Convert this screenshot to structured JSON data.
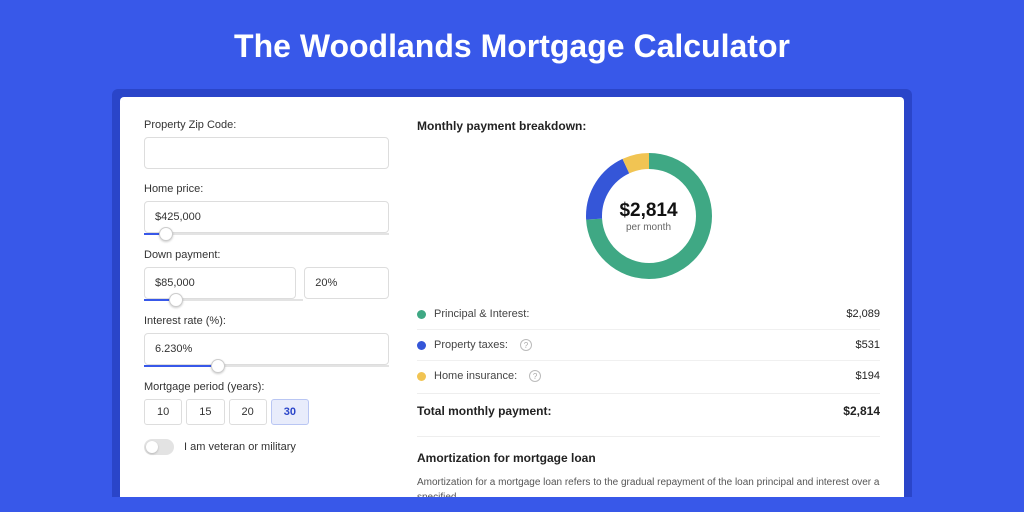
{
  "page": {
    "title": "The Woodlands Mortgage Calculator",
    "background_color": "#3858e9",
    "card_shadow_color": "#2a45c9"
  },
  "form": {
    "zip": {
      "label": "Property Zip Code:",
      "value": ""
    },
    "home_price": {
      "label": "Home price:",
      "value": "$425,000",
      "slider_pct": 9
    },
    "down_payment": {
      "label": "Down payment:",
      "value": "$85,000",
      "pct": "20%",
      "slider_pct": 20
    },
    "interest_rate": {
      "label": "Interest rate (%):",
      "value": "6.230%",
      "slider_pct": 30
    },
    "period": {
      "label": "Mortgage period (years):",
      "options": [
        "10",
        "15",
        "20",
        "30"
      ],
      "selected": "30"
    },
    "veteran": {
      "label": "I am veteran or military",
      "checked": false
    }
  },
  "breakdown": {
    "title": "Monthly payment breakdown:",
    "total": "$2,814",
    "sub": "per month",
    "donut": {
      "slices": [
        {
          "key": "pi",
          "pct": 74,
          "color": "#3fa884"
        },
        {
          "key": "tax",
          "pct": 19,
          "color": "#3556d8"
        },
        {
          "key": "ins",
          "pct": 7,
          "color": "#f1c453"
        }
      ],
      "stroke_width": 16,
      "radius": 55
    },
    "items": [
      {
        "dot": "#3fa884",
        "label": "Principal & Interest:",
        "info": false,
        "value": "$2,089"
      },
      {
        "dot": "#3556d8",
        "label": "Property taxes:",
        "info": true,
        "value": "$531"
      },
      {
        "dot": "#f1c453",
        "label": "Home insurance:",
        "info": true,
        "value": "$194"
      }
    ],
    "total_row": {
      "label": "Total monthly payment:",
      "value": "$2,814"
    }
  },
  "amortization": {
    "title": "Amortization for mortgage loan",
    "text": "Amortization for a mortgage loan refers to the gradual repayment of the loan principal and interest over a specified"
  }
}
